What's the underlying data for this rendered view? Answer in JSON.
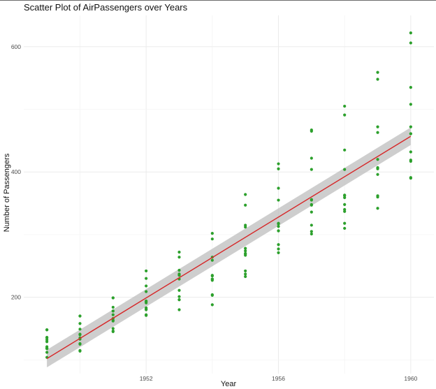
{
  "chart_data": {
    "type": "scatter",
    "title": "Scatter Plot of AirPassengers over Years",
    "xlabel": "Year",
    "ylabel": "Number of Passengers",
    "xlim": [
      1948.3,
      1960.7
    ],
    "ylim": [
      78,
      650
    ],
    "x_ticks": [
      1952,
      1956,
      1960
    ],
    "y_ticks": [
      200,
      400,
      600
    ],
    "grid": true,
    "point_color": "#2ca02c",
    "line_color": "#d62728",
    "band_color": "#bdbdbd",
    "points": {
      "1949": [
        112,
        118,
        132,
        129,
        121,
        135,
        148,
        148,
        136,
        119,
        104,
        118
      ],
      "1950": [
        115,
        126,
        141,
        135,
        125,
        149,
        170,
        170,
        158,
        133,
        114,
        140
      ],
      "1951": [
        145,
        150,
        178,
        163,
        172,
        178,
        199,
        199,
        184,
        162,
        146,
        166
      ],
      "1952": [
        171,
        180,
        193,
        181,
        183,
        218,
        230,
        242,
        209,
        191,
        172,
        194
      ],
      "1953": [
        196,
        196,
        236,
        235,
        229,
        243,
        264,
        272,
        237,
        211,
        180,
        201
      ],
      "1954": [
        204,
        188,
        235,
        227,
        234,
        264,
        302,
        293,
        259,
        229,
        203,
        229
      ],
      "1955": [
        242,
        233,
        267,
        269,
        270,
        315,
        364,
        347,
        312,
        274,
        237,
        278
      ],
      "1956": [
        284,
        277,
        317,
        313,
        318,
        374,
        413,
        405,
        355,
        306,
        271,
        306
      ],
      "1957": [
        315,
        301,
        356,
        348,
        355,
        422,
        465,
        467,
        404,
        347,
        305,
        336
      ],
      "1958": [
        340,
        318,
        362,
        348,
        363,
        435,
        491,
        505,
        404,
        359,
        310,
        337
      ],
      "1959": [
        360,
        342,
        406,
        396,
        420,
        472,
        548,
        559,
        463,
        407,
        362,
        405
      ],
      "1960": [
        417,
        391,
        419,
        461,
        472,
        535,
        622,
        606,
        508,
        461,
        390,
        432
      ]
    },
    "trend": {
      "x": [
        1949,
        1960
      ],
      "y": [
        102,
        457
      ],
      "band_halfwidth": [
        14,
        14
      ]
    }
  }
}
